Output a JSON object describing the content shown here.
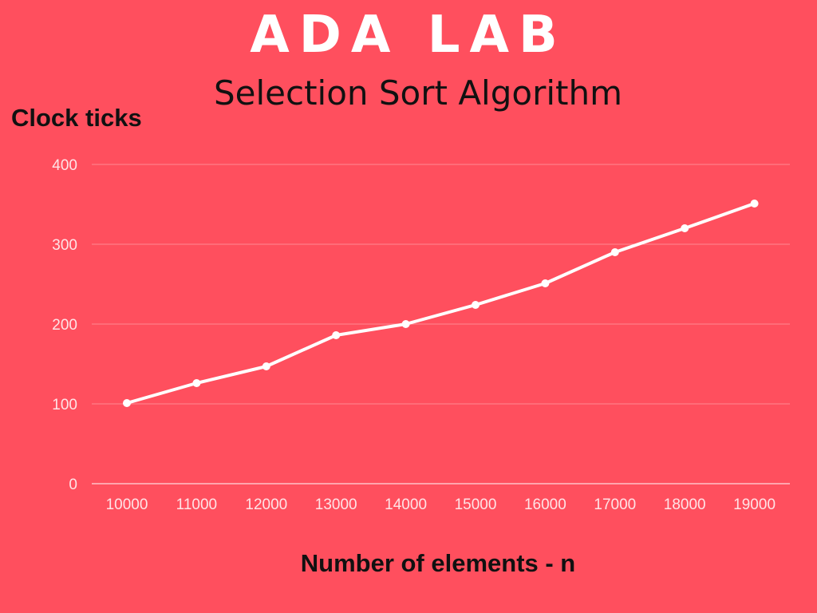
{
  "colors": {
    "background": "#ff4f5e",
    "line": "#ffffff",
    "grid": "#ff8a93",
    "axis": "#ffc2c7",
    "tick_text": "#ffe3e6"
  },
  "chart_data": {
    "type": "line",
    "title": "ADA LAB",
    "subtitle": "Selection Sort Algorithm",
    "xlabel": "Number of elements - n",
    "ylabel": "Clock ticks",
    "categories": [
      "10000",
      "11000",
      "12000",
      "13000",
      "14000",
      "15000",
      "16000",
      "17000",
      "18000",
      "19000"
    ],
    "series": [
      {
        "values": [
          101,
          126,
          147,
          186,
          200,
          224,
          251,
          290,
          320,
          351
        ]
      }
    ],
    "ylim": [
      0,
      400
    ],
    "yticks": [
      "0",
      "100",
      "200",
      "300",
      "400"
    ],
    "grid": true,
    "legend": "none"
  }
}
